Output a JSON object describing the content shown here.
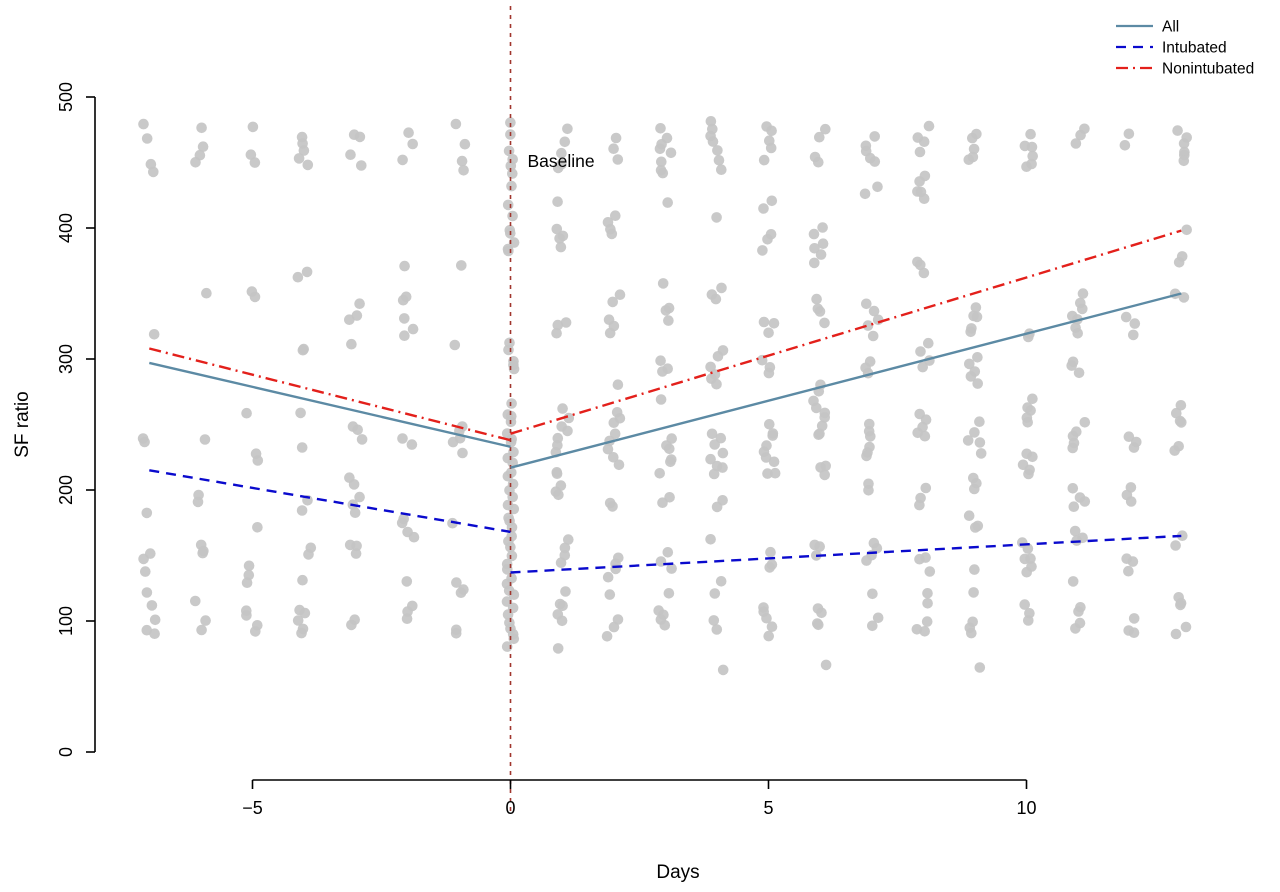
{
  "chart_data": {
    "type": "scatter",
    "title": "",
    "xlabel": "Days",
    "ylabel": "SF ratio",
    "xlim": [
      -7.6,
      13.6
    ],
    "ylim": [
      0,
      500
    ],
    "x_ticks": [
      -5,
      0,
      5,
      10
    ],
    "y_ticks": [
      0,
      100,
      200,
      300,
      400,
      500
    ],
    "grid": false,
    "point_color": "#c4c4c4",
    "baseline": {
      "x": 0,
      "label": "Baseline",
      "color": "#a1362e",
      "line_style": "dashed"
    },
    "legend": {
      "position": "top-right",
      "entries": [
        "All",
        "Intubated",
        "Nonintubated"
      ]
    },
    "series": [
      {
        "name": "All",
        "color": "#5c8aa4",
        "style": "solid",
        "pre_baseline": [
          [
            -7,
            297
          ],
          [
            0,
            233
          ]
        ],
        "post_baseline": [
          [
            0,
            217
          ],
          [
            13,
            350
          ]
        ]
      },
      {
        "name": "Intubated",
        "color": "#0a0acd",
        "style": "dashed",
        "pre_baseline": [
          [
            -7,
            215
          ],
          [
            0,
            168
          ]
        ],
        "post_baseline": [
          [
            0,
            137
          ],
          [
            13,
            165
          ]
        ]
      },
      {
        "name": "Nonintubated",
        "color": "#e3201b",
        "style": "dashdot",
        "pre_baseline": [
          [
            -7,
            308
          ],
          [
            0,
            238
          ]
        ],
        "post_baseline": [
          [
            0,
            243
          ],
          [
            13,
            398
          ]
        ]
      }
    ],
    "scatter_by_day": {
      "-7": [
        478,
        468,
        450,
        445,
        320,
        240,
        235,
        185,
        150,
        145,
        140,
        123,
        110,
        100,
        95,
        90
      ],
      "-6": [
        475,
        460,
        455,
        448,
        350,
        240,
        195,
        190,
        160,
        155,
        150,
        115,
        100,
        95
      ],
      "-5": [
        477,
        455,
        450,
        350,
        345,
        260,
        230,
        225,
        170,
        140,
        135,
        130,
        110,
        105,
        95,
        90
      ],
      "-4": [
        470,
        465,
        460,
        452,
        448,
        365,
        360,
        310,
        305,
        260,
        230,
        190,
        185,
        155,
        150,
        130,
        110,
        105,
        100,
        95,
        90
      ],
      "-3": [
        472,
        468,
        455,
        450,
        340,
        335,
        330,
        310,
        250,
        245,
        240,
        210,
        205,
        195,
        190,
        185,
        160,
        155,
        150,
        100,
        95
      ],
      "-2": [
        475,
        465,
        450,
        370,
        350,
        345,
        330,
        325,
        320,
        240,
        235,
        180,
        175,
        170,
        165,
        130,
        110,
        105,
        100
      ],
      "-1": [
        478,
        465,
        450,
        445,
        370,
        310,
        250,
        245,
        240,
        235,
        230,
        175,
        130,
        125,
        120,
        95,
        90
      ],
      "0": [
        478,
        470,
        460,
        450,
        445,
        440,
        430,
        420,
        410,
        400,
        395,
        390,
        385,
        380,
        310,
        305,
        300,
        295,
        290,
        265,
        260,
        255,
        250,
        245,
        240,
        235,
        230,
        225,
        220,
        215,
        210,
        205,
        200,
        195,
        190,
        185,
        180,
        175,
        170,
        165,
        160,
        155,
        150,
        145,
        140,
        135,
        130,
        125,
        120,
        115,
        110,
        105,
        100,
        95,
        90,
        85,
        80
      ],
      "1": [
        475,
        465,
        455,
        450,
        445,
        420,
        400,
        395,
        390,
        385,
        330,
        325,
        320,
        260,
        255,
        250,
        245,
        240,
        235,
        230,
        215,
        210,
        205,
        200,
        195,
        160,
        155,
        150,
        145,
        120,
        115,
        110,
        105,
        100,
        80
      ],
      "2": [
        470,
        460,
        450,
        410,
        405,
        400,
        395,
        350,
        345,
        330,
        325,
        320,
        280,
        260,
        255,
        250,
        245,
        240,
        230,
        225,
        220,
        190,
        185,
        150,
        145,
        140,
        135,
        120,
        100,
        95,
        90
      ],
      "3": [
        475,
        470,
        465,
        460,
        455,
        450,
        445,
        440,
        420,
        360,
        340,
        335,
        330,
        300,
        295,
        290,
        270,
        240,
        235,
        230,
        225,
        220,
        215,
        195,
        190,
        150,
        145,
        140,
        120,
        110,
        105,
        100,
        95
      ],
      "4": [
        480,
        475,
        470,
        465,
        460,
        450,
        445,
        410,
        355,
        350,
        345,
        305,
        300,
        295,
        290,
        285,
        280,
        245,
        240,
        235,
        230,
        225,
        220,
        215,
        210,
        190,
        185,
        160,
        130,
        120,
        100,
        95,
        65
      ],
      "5": [
        478,
        472,
        468,
        460,
        450,
        420,
        415,
        395,
        390,
        385,
        330,
        325,
        320,
        300,
        295,
        290,
        250,
        245,
        240,
        235,
        230,
        225,
        220,
        215,
        210,
        150,
        145,
        140,
        110,
        105,
        100,
        95,
        90
      ],
      "6": [
        475,
        470,
        455,
        450,
        400,
        395,
        390,
        385,
        380,
        375,
        345,
        340,
        335,
        330,
        280,
        275,
        270,
        265,
        260,
        255,
        250,
        245,
        240,
        220,
        215,
        210,
        160,
        155,
        150,
        110,
        105,
        100,
        95,
        65
      ],
      "7": [
        470,
        465,
        460,
        455,
        450,
        430,
        425,
        340,
        335,
        330,
        325,
        320,
        300,
        295,
        290,
        250,
        245,
        240,
        235,
        230,
        225,
        205,
        200,
        160,
        155,
        150,
        145,
        120,
        100,
        95
      ],
      "8": [
        478,
        470,
        465,
        460,
        440,
        435,
        430,
        425,
        420,
        375,
        370,
        365,
        310,
        305,
        300,
        295,
        260,
        255,
        250,
        245,
        240,
        200,
        195,
        190,
        150,
        145,
        140,
        120,
        115,
        100,
        95,
        90
      ],
      "9": [
        472,
        468,
        460,
        455,
        450,
        340,
        335,
        330,
        325,
        320,
        300,
        295,
        290,
        285,
        280,
        250,
        245,
        240,
        235,
        230,
        210,
        205,
        200,
        180,
        175,
        170,
        140,
        120,
        100,
        95,
        90,
        65
      ],
      "10": [
        470,
        465,
        460,
        455,
        450,
        445,
        320,
        315,
        270,
        265,
        260,
        255,
        250,
        230,
        225,
        220,
        215,
        210,
        160,
        155,
        150,
        145,
        140,
        135,
        110,
        105,
        100
      ],
      "11": [
        475,
        470,
        465,
        350,
        345,
        340,
        335,
        330,
        325,
        320,
        300,
        295,
        290,
        250,
        245,
        240,
        235,
        230,
        200,
        195,
        190,
        185,
        170,
        165,
        160,
        130,
        110,
        105,
        100,
        95
      ],
      "12": [
        470,
        465,
        330,
        325,
        320,
        240,
        235,
        230,
        200,
        195,
        190,
        150,
        145,
        140,
        100,
        95,
        90
      ],
      "13": [
        475,
        470,
        465,
        460,
        455,
        450,
        400,
        380,
        375,
        350,
        345,
        265,
        260,
        255,
        250,
        235,
        230,
        165,
        160,
        120,
        115,
        110,
        95,
        90
      ]
    }
  }
}
